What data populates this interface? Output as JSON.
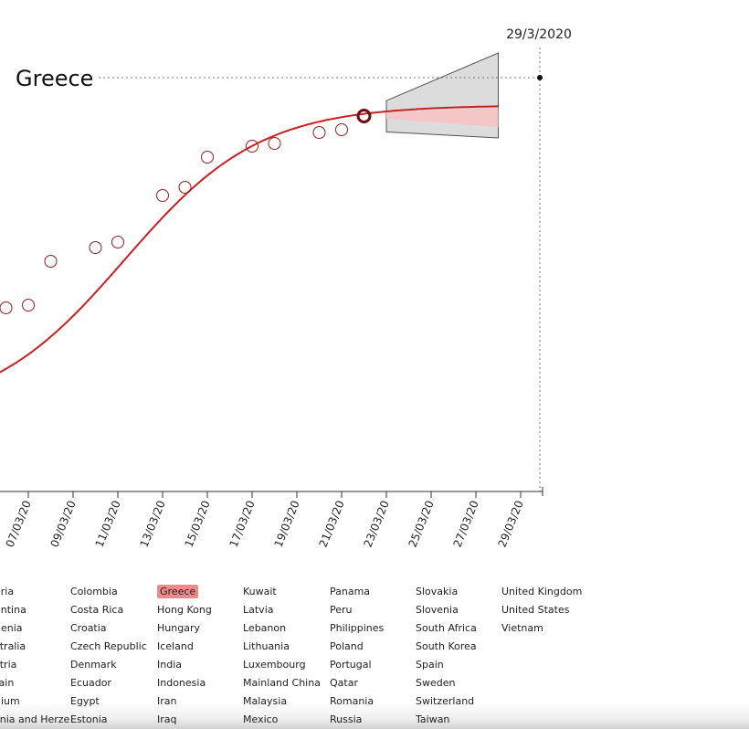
{
  "chart_data": {
    "type": "scatter",
    "title": "",
    "country": "Greece",
    "forecast_date": "29/3/2020",
    "x_tick_labels": [
      "07/03/20",
      "09/03/20",
      "11/03/20",
      "13/03/20",
      "15/03/20",
      "17/03/20",
      "19/03/20",
      "21/03/20",
      "23/03/20",
      "25/03/20",
      "27/03/20",
      "29/03/20"
    ],
    "xlim": [
      "05/03/20",
      "30/03/20"
    ],
    "observed_points": [
      {
        "x": "06/03/20",
        "y": 0.335
      },
      {
        "x": "07/03/20",
        "y": 0.34
      },
      {
        "x": "08/03/20",
        "y": 0.42
      },
      {
        "x": "10/03/20",
        "y": 0.445
      },
      {
        "x": "11/03/20",
        "y": 0.455
      },
      {
        "x": "13/03/20",
        "y": 0.54
      },
      {
        "x": "14/03/20",
        "y": 0.555
      },
      {
        "x": "15/03/20",
        "y": 0.61
      },
      {
        "x": "17/03/20",
        "y": 0.63
      },
      {
        "x": "18/03/20",
        "y": 0.635
      },
      {
        "x": "20/03/20",
        "y": 0.655
      },
      {
        "x": "21/03/20",
        "y": 0.66
      },
      {
        "x": "22/03/20",
        "y": 0.685
      }
    ],
    "highlight_point": {
      "x": "22/03/20",
      "y": 0.685
    },
    "fit_curve": {
      "color": "#cc1f1f"
    },
    "forecast_band": {
      "x_start": "23/03/20",
      "x_end": "28/03/20",
      "outer_upper_end": 0.8,
      "outer_lower_end": 0.645,
      "inner_upper_end": 0.7,
      "inner_lower_end": 0.665,
      "median_end": 0.683
    },
    "reference_line_y": 0.755,
    "grid": false,
    "colors": {
      "fit": "#cc1f1f",
      "band_outer": "#dcdcdc",
      "band_inner": "#f4c6c6",
      "points": "#9b1b1b"
    }
  },
  "countries": {
    "columns": [
      [
        "eria",
        "entina",
        "nenia",
        "stralia",
        "stria",
        "rain",
        "gium",
        "snia and Herze"
      ],
      [
        "Colombia",
        "Costa Rica",
        "Croatia",
        "Czech Republic",
        "Denmark",
        "Ecuador",
        "Egypt",
        "Estonia"
      ],
      [
        "Greece",
        "Hong Kong",
        "Hungary",
        "Iceland",
        "India",
        "Indonesia",
        "Iran",
        "Iraq"
      ],
      [
        "Kuwait",
        "Latvia",
        "Lebanon",
        "Lithuania",
        "Luxembourg",
        "Mainland China",
        "Malaysia",
        "Mexico"
      ],
      [
        "Panama",
        "Peru",
        "Philippines",
        "Poland",
        "Portugal",
        "Qatar",
        "Romania",
        "Russia"
      ],
      [
        "Slovakia",
        "Slovenia",
        "South Africa",
        "South Korea",
        "Spain",
        "Sweden",
        "Switzerland",
        "Taiwan"
      ],
      [
        "United Kingdom",
        "United States",
        "Vietnam"
      ]
    ],
    "selected": "Greece"
  }
}
